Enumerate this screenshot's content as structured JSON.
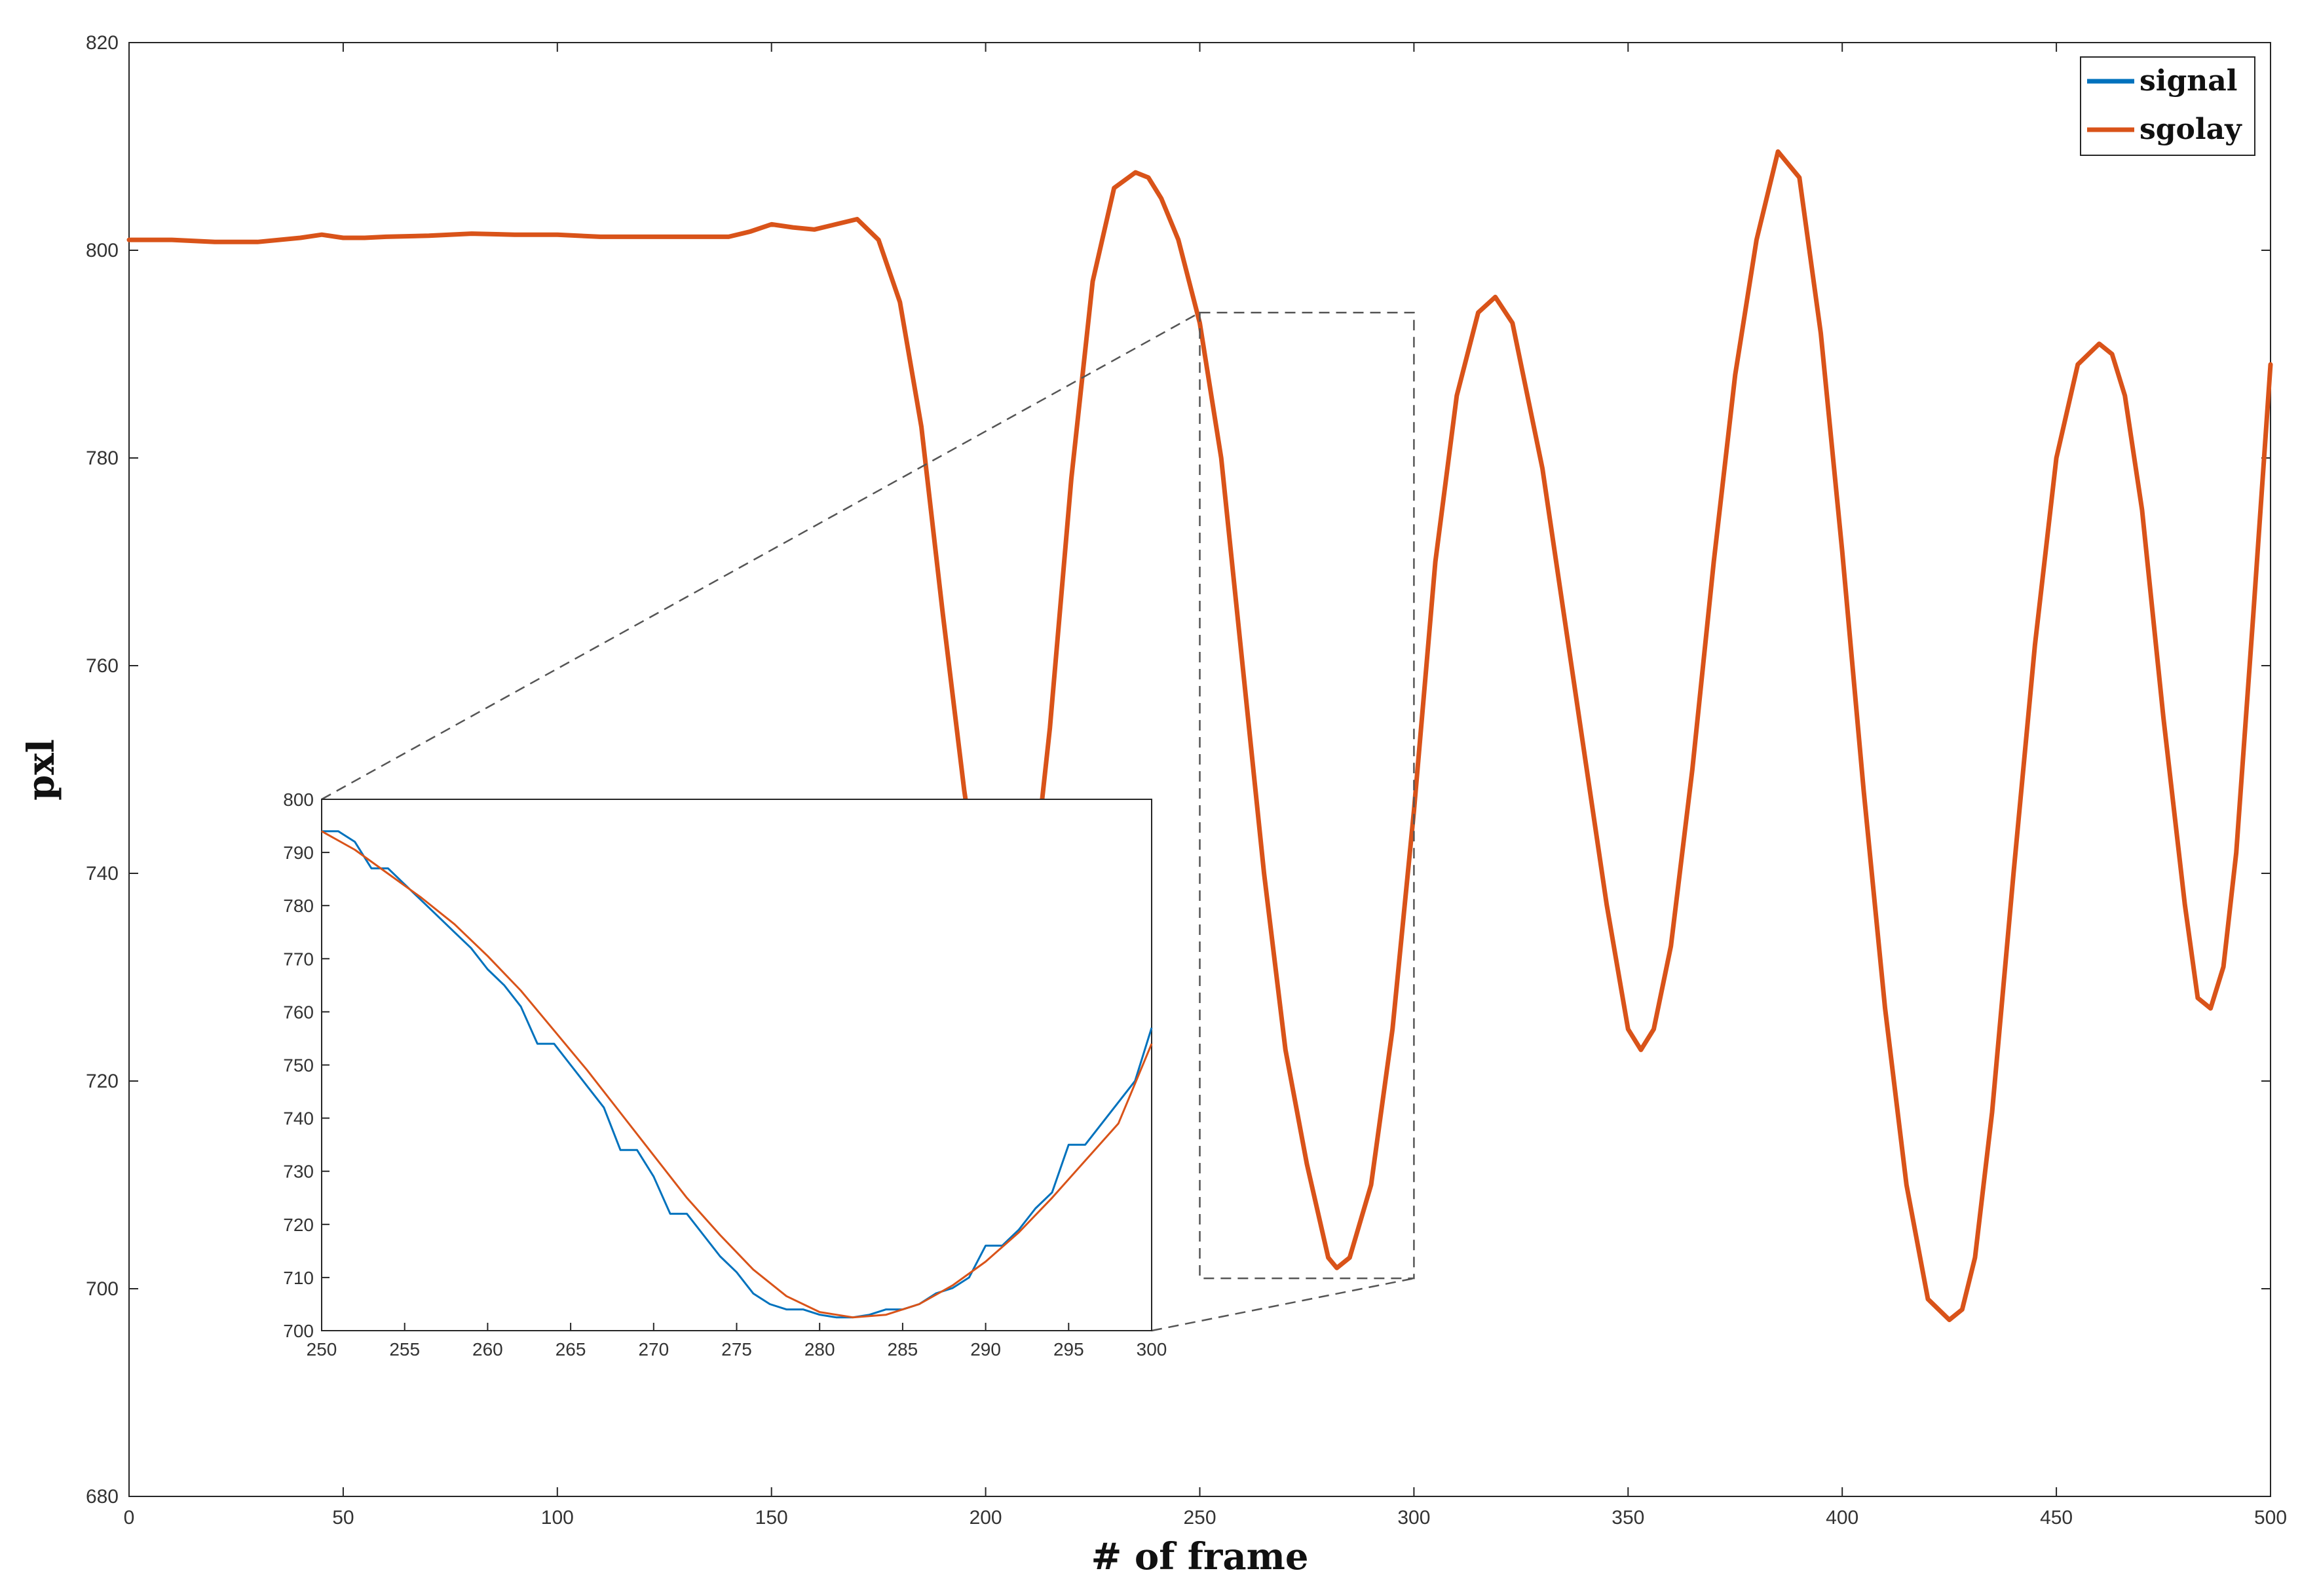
{
  "chart_data": {
    "type": "line",
    "title": "",
    "xlabel": "# of frame",
    "ylabel": "pxl",
    "xlim": [
      0,
      500
    ],
    "ylim": [
      680,
      820
    ],
    "x_ticks": [
      0,
      50,
      100,
      150,
      200,
      250,
      300,
      350,
      400,
      450,
      500
    ],
    "y_ticks": [
      680,
      700,
      720,
      740,
      760,
      780,
      800,
      820
    ],
    "grid": false,
    "legend_position": "top-right",
    "colors": {
      "signal": "#0072bd",
      "sgolay": "#d95319"
    },
    "series": [
      {
        "name": "signal",
        "x": [
          0,
          10,
          20,
          30,
          40,
          45,
          50,
          55,
          60,
          70,
          80,
          90,
          100,
          110,
          120,
          130,
          140,
          145,
          150,
          155,
          160,
          165,
          170,
          175,
          180,
          185,
          190,
          195,
          200,
          205,
          210,
          215,
          220,
          225,
          230,
          235,
          238,
          241,
          245,
          250,
          255,
          260,
          265,
          270,
          275,
          280,
          282,
          285,
          290,
          295,
          300,
          305,
          310,
          315,
          319,
          323,
          330,
          335,
          340,
          345,
          350,
          353,
          356,
          360,
          365,
          370,
          375,
          380,
          385,
          390,
          395,
          400,
          405,
          410,
          415,
          420,
          425,
          428,
          431,
          435,
          440,
          445,
          450,
          455,
          460,
          463,
          466,
          470,
          475,
          480,
          483,
          486,
          489,
          492,
          496,
          500
        ],
        "values": [
          801,
          801,
          800.8,
          800.8,
          801.2,
          801.5,
          801.2,
          801.2,
          801.3,
          801.4,
          801.6,
          801.5,
          801.5,
          801.3,
          801.3,
          801.3,
          801.3,
          801.8,
          802.5,
          802.2,
          802,
          802.5,
          803,
          801,
          795,
          783,
          765,
          748,
          734,
          728,
          735,
          754,
          778,
          797,
          806,
          807.5,
          807,
          805,
          801,
          793,
          780,
          760,
          740,
          723,
          712,
          703,
          702,
          703,
          710,
          725,
          746,
          770,
          786,
          794,
          795.5,
          793,
          779,
          765,
          751,
          737,
          725,
          723,
          725,
          733,
          750,
          770,
          788,
          801,
          809.5,
          807,
          792,
          771,
          748,
          727,
          710,
          699,
          697,
          698,
          703,
          717,
          740,
          762,
          780,
          789,
          791,
          790,
          786,
          775,
          755,
          737,
          728,
          727,
          731,
          742,
          765,
          789
        ]
      },
      {
        "name": "sgolay",
        "x": [
          0,
          10,
          20,
          30,
          40,
          45,
          50,
          55,
          60,
          70,
          80,
          90,
          100,
          110,
          120,
          130,
          140,
          145,
          150,
          155,
          160,
          165,
          170,
          175,
          180,
          185,
          190,
          195,
          200,
          205,
          210,
          215,
          220,
          225,
          230,
          235,
          238,
          241,
          245,
          250,
          255,
          260,
          265,
          270,
          275,
          280,
          282,
          285,
          290,
          295,
          300,
          305,
          310,
          315,
          319,
          323,
          330,
          335,
          340,
          345,
          350,
          353,
          356,
          360,
          365,
          370,
          375,
          380,
          385,
          390,
          395,
          400,
          405,
          410,
          415,
          420,
          425,
          428,
          431,
          435,
          440,
          445,
          450,
          455,
          460,
          463,
          466,
          470,
          475,
          480,
          483,
          486,
          489,
          492,
          496,
          500
        ],
        "values": [
          801,
          801,
          800.8,
          800.8,
          801.2,
          801.5,
          801.2,
          801.2,
          801.3,
          801.4,
          801.6,
          801.5,
          801.5,
          801.3,
          801.3,
          801.3,
          801.3,
          801.8,
          802.5,
          802.2,
          802,
          802.5,
          803,
          801,
          795,
          783,
          765,
          748,
          734,
          728,
          735,
          754,
          778,
          797,
          806,
          807.5,
          807,
          805,
          801,
          793,
          780,
          760,
          740,
          723,
          712,
          703,
          702,
          703,
          710,
          725,
          746,
          770,
          786,
          794,
          795.5,
          793,
          779,
          765,
          751,
          737,
          725,
          723,
          725,
          733,
          750,
          770,
          788,
          801,
          809.5,
          807,
          792,
          771,
          748,
          727,
          710,
          699,
          697,
          698,
          703,
          717,
          740,
          762,
          780,
          789,
          791,
          790,
          786,
          775,
          755,
          737,
          728,
          727,
          731,
          742,
          765,
          789
        ]
      }
    ],
    "inset": {
      "type": "line",
      "xlim": [
        250,
        300
      ],
      "ylim": [
        700,
        800
      ],
      "x_ticks": [
        250,
        255,
        260,
        265,
        270,
        275,
        280,
        285,
        290,
        295,
        300
      ],
      "y_ticks": [
        700,
        710,
        720,
        730,
        740,
        750,
        760,
        770,
        780,
        790,
        800
      ],
      "zoom_region": {
        "x": [
          250,
          300
        ],
        "y": [
          701,
          794
        ]
      },
      "series": [
        {
          "name": "signal",
          "x": [
            250,
            251,
            252,
            253,
            254,
            255,
            256,
            257,
            258,
            259,
            260,
            261,
            262,
            263,
            264,
            265,
            266,
            267,
            268,
            269,
            270,
            271,
            272,
            273,
            274,
            275,
            276,
            277,
            278,
            279,
            280,
            281,
            282,
            283,
            284,
            285,
            286,
            287,
            288,
            289,
            290,
            291,
            292,
            293,
            294,
            295,
            296,
            297,
            298,
            299,
            300
          ],
          "values": [
            794,
            794,
            792,
            787,
            787,
            784,
            781,
            778,
            775,
            772,
            768,
            765,
            761,
            754,
            754,
            750,
            746,
            742,
            734,
            734,
            729,
            722,
            722,
            718,
            714,
            711,
            707,
            705,
            704,
            704,
            703,
            702.5,
            702.5,
            703,
            704,
            704,
            705,
            707,
            708,
            710,
            716,
            716,
            719,
            723,
            726,
            735,
            735,
            739,
            743,
            747,
            757
          ]
        },
        {
          "name": "sgolay",
          "x": [
            250,
            252,
            254,
            256,
            258,
            260,
            262,
            264,
            266,
            268,
            270,
            272,
            274,
            276,
            278,
            280,
            282,
            284,
            286,
            288,
            290,
            292,
            294,
            296,
            298,
            300
          ],
          "values": [
            794,
            790.5,
            786,
            781.5,
            776.5,
            770.5,
            764,
            756.5,
            749,
            741,
            733,
            725,
            718,
            711.5,
            706.5,
            703.5,
            702.5,
            703,
            705,
            708.5,
            713,
            718.5,
            725,
            732,
            739,
            754
          ]
        }
      ]
    }
  }
}
